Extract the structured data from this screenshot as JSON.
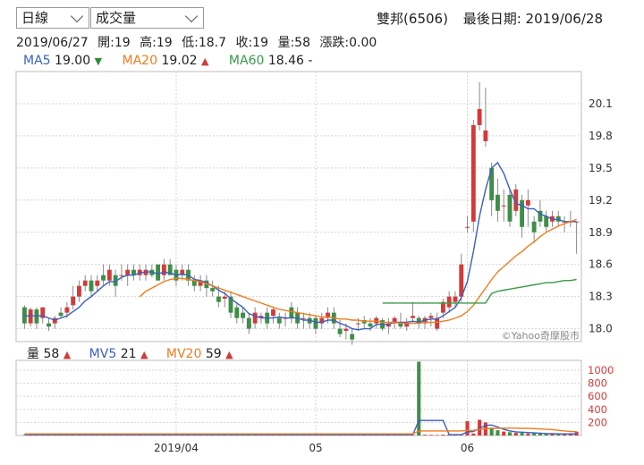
{
  "controls": {
    "period_select": "日線",
    "indicator_select": "成交量"
  },
  "header": {
    "stock": "雙邦(6506)",
    "last_date_label": "最後日期: 2019/06/28"
  },
  "ohlc_line": {
    "date": "2019/06/27",
    "open": "開:19",
    "high": "高:19",
    "low": "低:18.7",
    "close": "收:19",
    "volume": "量:58",
    "change": "漲跌:0.00"
  },
  "ma_legend": [
    {
      "label": "MA5",
      "value": "19.00",
      "arrow": "▼",
      "arrow_dir": "down",
      "color": "#3b5fc0"
    },
    {
      "label": "MA20",
      "value": "19.02",
      "arrow": "▲",
      "arrow_dir": "up",
      "color": "#f07c1e"
    },
    {
      "label": "MA60",
      "value": "18.46",
      "arrow": "-",
      "arrow_dir": "none",
      "color": "#3a9a4a"
    }
  ],
  "vol_legend": [
    {
      "label": "量",
      "value": "58",
      "arrow": "▲",
      "color": "#222222"
    },
    {
      "label": "MV5",
      "value": "21",
      "arrow": "▲",
      "color": "#3b5fc0"
    },
    {
      "label": "MV20",
      "value": "59",
      "arrow": "▲",
      "color": "#f07c1e"
    }
  ],
  "watermark": "©Yahoo奇摩股市",
  "colors": {
    "up": "#d23b3b",
    "down": "#3e8e48",
    "ma5": "#3b5fc0",
    "ma20": "#f07c1e",
    "ma60": "#3a9a4a",
    "grid": "#d4d4d4"
  },
  "chart_data": [
    {
      "type": "candlestick",
      "y_ticks": [
        20.1,
        19.8,
        19.5,
        19.2,
        18.9,
        18.6,
        18.3,
        18.0
      ],
      "ylim": [
        17.88,
        20.4
      ],
      "x_tick_labels": [
        {
          "label": "2019/04",
          "index": 25
        },
        {
          "label": "05",
          "index": 48
        },
        {
          "label": "06",
          "index": 73
        }
      ],
      "grid": true,
      "candles_ohlc": [
        [
          18.2,
          18.22,
          18.0,
          18.05
        ],
        [
          18.05,
          18.2,
          18.02,
          18.18
        ],
        [
          18.18,
          18.2,
          18.0,
          18.05
        ],
        [
          18.1,
          18.2,
          18.05,
          18.2
        ],
        [
          18.05,
          18.1,
          17.98,
          18.02
        ],
        [
          18.05,
          18.12,
          18.0,
          18.1
        ],
        [
          18.15,
          18.2,
          18.1,
          18.12
        ],
        [
          18.15,
          18.25,
          18.1,
          18.2
        ],
        [
          18.22,
          18.4,
          18.18,
          18.3
        ],
        [
          18.3,
          18.45,
          18.25,
          18.4
        ],
        [
          18.4,
          18.5,
          18.35,
          18.45
        ],
        [
          18.45,
          18.5,
          18.3,
          18.35
        ],
        [
          18.4,
          18.5,
          18.35,
          18.45
        ],
        [
          18.5,
          18.6,
          18.4,
          18.45
        ],
        [
          18.45,
          18.6,
          18.4,
          18.55
        ],
        [
          18.5,
          18.55,
          18.3,
          18.4
        ],
        [
          18.5,
          18.6,
          18.45,
          18.5
        ],
        [
          18.5,
          18.6,
          18.4,
          18.55
        ],
        [
          18.55,
          18.6,
          18.45,
          18.5
        ],
        [
          18.5,
          18.6,
          18.45,
          18.55
        ],
        [
          18.5,
          18.6,
          18.45,
          18.55
        ],
        [
          18.55,
          18.6,
          18.48,
          18.5
        ],
        [
          18.6,
          18.6,
          18.45,
          18.45
        ],
        [
          18.5,
          18.65,
          18.45,
          18.6
        ],
        [
          18.6,
          18.65,
          18.5,
          18.5
        ],
        [
          18.55,
          18.6,
          18.4,
          18.45
        ],
        [
          18.5,
          18.6,
          18.45,
          18.55
        ],
        [
          18.55,
          18.6,
          18.4,
          18.45
        ],
        [
          18.45,
          18.5,
          18.35,
          18.4
        ],
        [
          18.4,
          18.5,
          18.35,
          18.45
        ],
        [
          18.45,
          18.5,
          18.3,
          18.38
        ],
        [
          18.38,
          18.45,
          18.3,
          18.35
        ],
        [
          18.3,
          18.4,
          18.2,
          18.25
        ],
        [
          18.28,
          18.35,
          18.2,
          18.3
        ],
        [
          18.3,
          18.35,
          18.1,
          18.15
        ],
        [
          18.2,
          18.25,
          18.05,
          18.1
        ],
        [
          18.15,
          18.2,
          18.05,
          18.1
        ],
        [
          18.1,
          18.15,
          17.95,
          18.0
        ],
        [
          18.05,
          18.2,
          18.0,
          18.15
        ],
        [
          18.1,
          18.15,
          18.05,
          18.12
        ],
        [
          18.15,
          18.2,
          18.0,
          18.05
        ],
        [
          18.12,
          18.2,
          18.05,
          18.18
        ],
        [
          18.1,
          18.15,
          18.0,
          18.05
        ],
        [
          18.1,
          18.15,
          18.02,
          18.1
        ],
        [
          18.2,
          18.25,
          18.05,
          18.1
        ],
        [
          18.15,
          18.2,
          18.0,
          18.05
        ],
        [
          18.1,
          18.15,
          18.0,
          18.1
        ],
        [
          18.1,
          18.15,
          18.0,
          18.05
        ],
        [
          18.1,
          18.12,
          17.95,
          18.0
        ],
        [
          18.05,
          18.15,
          18.0,
          18.1
        ],
        [
          18.1,
          18.2,
          18.05,
          18.15
        ],
        [
          18.15,
          18.2,
          18.0,
          18.05
        ],
        [
          18.0,
          18.08,
          17.92,
          17.95
        ],
        [
          17.98,
          18.05,
          17.9,
          18.0
        ],
        [
          17.95,
          18.0,
          17.85,
          17.9
        ],
        [
          18.05,
          18.1,
          17.98,
          18.05
        ],
        [
          18.08,
          18.12,
          18.0,
          18.05
        ],
        [
          18.05,
          18.1,
          17.98,
          18.02
        ],
        [
          18.05,
          18.12,
          18.0,
          18.1
        ],
        [
          18.08,
          18.1,
          17.98,
          18.0
        ],
        [
          18.02,
          18.1,
          17.95,
          18.05
        ],
        [
          18.05,
          18.12,
          18.0,
          18.1
        ],
        [
          18.05,
          18.15,
          18.0,
          18.02
        ],
        [
          18.02,
          18.1,
          17.98,
          18.05
        ],
        [
          18.1,
          18.25,
          18.05,
          18.12
        ],
        [
          18.1,
          18.12,
          18.0,
          18.05
        ],
        [
          18.05,
          18.12,
          18.0,
          18.1
        ],
        [
          18.1,
          18.15,
          18.02,
          18.12
        ],
        [
          18.0,
          18.15,
          17.98,
          18.1
        ],
        [
          18.15,
          18.28,
          18.1,
          18.25
        ],
        [
          18.2,
          18.35,
          18.15,
          18.3
        ],
        [
          18.25,
          18.35,
          18.2,
          18.3
        ],
        [
          18.3,
          18.7,
          18.25,
          18.6
        ],
        [
          18.95,
          19.05,
          18.9,
          18.95
        ],
        [
          19.0,
          19.95,
          18.9,
          19.9
        ],
        [
          19.9,
          20.3,
          19.85,
          20.05
        ],
        [
          19.75,
          20.25,
          19.7,
          19.85
        ],
        [
          19.5,
          19.55,
          19.05,
          19.2
        ],
        [
          19.25,
          19.4,
          19.0,
          19.1
        ],
        [
          19.15,
          19.3,
          19.0,
          19.15
        ],
        [
          19.25,
          19.3,
          18.95,
          19.0
        ],
        [
          19.1,
          19.35,
          19.05,
          19.3
        ],
        [
          19.2,
          19.25,
          18.85,
          18.95
        ],
        [
          19.15,
          19.3,
          18.95,
          19.2
        ],
        [
          19.0,
          19.05,
          18.8,
          18.9
        ],
        [
          19.1,
          19.2,
          18.95,
          19.0
        ],
        [
          19.05,
          19.1,
          18.9,
          18.95
        ],
        [
          19.0,
          19.1,
          18.95,
          19.05
        ],
        [
          19.05,
          19.1,
          18.95,
          19.0
        ],
        [
          19.0,
          19.05,
          18.9,
          19.0
        ],
        [
          19.0,
          19.1,
          18.95,
          19.0
        ],
        [
          19.0,
          19.0,
          18.7,
          19.0
        ]
      ],
      "series": [
        {
          "name": "MA5",
          "color": "#3b5fc0",
          "values": [
            18.12,
            18.12,
            18.12,
            18.12,
            18.1,
            18.08,
            18.1,
            18.12,
            18.16,
            18.2,
            18.26,
            18.3,
            18.35,
            18.4,
            18.44,
            18.44,
            18.48,
            18.5,
            18.5,
            18.52,
            18.53,
            18.53,
            18.51,
            18.53,
            18.52,
            18.5,
            18.51,
            18.5,
            18.46,
            18.45,
            18.43,
            18.4,
            18.36,
            18.33,
            18.28,
            18.24,
            18.2,
            18.14,
            18.12,
            18.1,
            18.1,
            18.1,
            18.11,
            18.1,
            18.1,
            18.1,
            18.08,
            18.08,
            18.06,
            18.06,
            18.08,
            18.08,
            18.05,
            18.03,
            18.0,
            17.99,
            18.0,
            18.0,
            18.04,
            18.04,
            18.04,
            18.06,
            18.06,
            18.06,
            18.07,
            18.06,
            18.08,
            18.09,
            18.09,
            18.12,
            18.16,
            18.2,
            18.29,
            18.44,
            18.72,
            19.05,
            19.3,
            19.5,
            19.55,
            19.45,
            19.3,
            19.17,
            19.15,
            19.12,
            19.12,
            19.07,
            19.05,
            19.02,
            19.02,
            19.0,
            19.0,
            19.0
          ]
        },
        {
          "name": "MA20",
          "color": "#f07c1e",
          "values": [
            null,
            null,
            null,
            null,
            null,
            null,
            null,
            null,
            null,
            null,
            null,
            null,
            null,
            null,
            null,
            null,
            null,
            null,
            null,
            18.3,
            18.35,
            18.38,
            18.41,
            18.44,
            18.46,
            18.47,
            18.47,
            18.46,
            18.45,
            18.44,
            18.42,
            18.4,
            18.38,
            18.36,
            18.34,
            18.32,
            18.3,
            18.28,
            18.26,
            18.24,
            18.22,
            18.2,
            18.18,
            18.17,
            18.16,
            18.15,
            18.14,
            18.13,
            18.12,
            18.11,
            18.11,
            18.1,
            18.09,
            18.09,
            18.08,
            18.08,
            18.07,
            18.07,
            18.07,
            18.06,
            18.06,
            18.06,
            18.05,
            18.05,
            18.05,
            18.05,
            18.06,
            18.06,
            18.06,
            18.07,
            18.08,
            18.1,
            18.12,
            18.16,
            18.22,
            18.3,
            18.38,
            18.46,
            18.53,
            18.58,
            18.63,
            18.68,
            18.72,
            18.77,
            18.81,
            18.86,
            18.9,
            18.93,
            18.96,
            18.98,
            19.0,
            19.02
          ]
        },
        {
          "name": "MA60",
          "color": "#3a9a4a",
          "values": [
            null,
            null,
            null,
            null,
            null,
            null,
            null,
            null,
            null,
            null,
            null,
            null,
            null,
            null,
            null,
            null,
            null,
            null,
            null,
            null,
            null,
            null,
            null,
            null,
            null,
            null,
            null,
            null,
            null,
            null,
            null,
            null,
            null,
            null,
            null,
            null,
            null,
            null,
            null,
            null,
            null,
            null,
            null,
            null,
            null,
            null,
            null,
            null,
            null,
            null,
            null,
            null,
            null,
            null,
            null,
            null,
            null,
            null,
            null,
            18.24,
            18.24,
            18.24,
            18.24,
            18.24,
            18.24,
            18.24,
            18.24,
            18.24,
            18.24,
            18.24,
            18.24,
            18.24,
            18.24,
            18.24,
            18.24,
            18.24,
            18.24,
            18.33,
            18.35,
            18.36,
            18.37,
            18.38,
            18.39,
            18.4,
            18.41,
            18.42,
            18.43,
            18.43,
            18.44,
            18.45,
            18.45,
            18.46
          ]
        }
      ]
    },
    {
      "type": "bar",
      "y_ticks": [
        1000,
        800,
        600,
        400,
        200
      ],
      "ylim": [
        0,
        1150
      ],
      "grid": true,
      "values": [
        8,
        6,
        10,
        12,
        8,
        6,
        10,
        8,
        12,
        14,
        10,
        8,
        10,
        12,
        10,
        8,
        10,
        12,
        10,
        8,
        10,
        12,
        14,
        10,
        8,
        10,
        8,
        10,
        12,
        10,
        8,
        10,
        8,
        12,
        8,
        10,
        8,
        6,
        8,
        10,
        8,
        6,
        8,
        10,
        8,
        6,
        8,
        10,
        8,
        6,
        8,
        10,
        8,
        12,
        10,
        8,
        10,
        12,
        10,
        8,
        10,
        12,
        12,
        14,
        10,
        1130,
        12,
        10,
        8,
        12,
        14,
        10,
        8,
        220,
        30,
        240,
        200,
        120,
        80,
        60,
        50,
        40,
        40,
        30,
        35,
        30,
        25,
        25,
        20,
        30,
        25,
        58
      ],
      "series": [
        {
          "name": "MV5",
          "color": "#3b5fc0",
          "values": [
            12,
            12,
            12,
            12,
            12,
            12,
            12,
            12,
            12,
            12,
            12,
            12,
            12,
            12,
            12,
            12,
            12,
            12,
            12,
            12,
            12,
            12,
            12,
            12,
            12,
            12,
            12,
            12,
            12,
            12,
            12,
            12,
            12,
            12,
            12,
            12,
            12,
            12,
            12,
            12,
            12,
            12,
            12,
            12,
            12,
            12,
            12,
            12,
            12,
            12,
            12,
            12,
            12,
            12,
            12,
            12,
            12,
            12,
            12,
            12,
            12,
            12,
            12,
            12,
            12,
            230,
            230,
            230,
            230,
            230,
            12,
            12,
            12,
            55,
            60,
            110,
            155,
            160,
            130,
            95,
            70,
            55,
            50,
            45,
            40,
            35,
            30,
            28,
            25,
            25,
            25,
            21
          ]
        },
        {
          "name": "MV20",
          "color": "#f07c1e",
          "values": [
            25,
            25,
            25,
            25,
            25,
            25,
            25,
            25,
            25,
            25,
            25,
            25,
            25,
            25,
            25,
            25,
            25,
            25,
            25,
            25,
            25,
            25,
            25,
            25,
            25,
            25,
            25,
            25,
            25,
            25,
            25,
            25,
            25,
            25,
            25,
            25,
            25,
            25,
            25,
            25,
            25,
            25,
            25,
            25,
            25,
            25,
            25,
            25,
            25,
            25,
            25,
            25,
            25,
            25,
            25,
            25,
            25,
            25,
            25,
            25,
            25,
            25,
            25,
            25,
            25,
            70,
            70,
            70,
            70,
            70,
            70,
            70,
            70,
            78,
            80,
            92,
            102,
            108,
            110,
            112,
            112,
            112,
            110,
            108,
            105,
            100,
            95,
            90,
            80,
            70,
            62,
            59
          ]
        }
      ]
    }
  ]
}
